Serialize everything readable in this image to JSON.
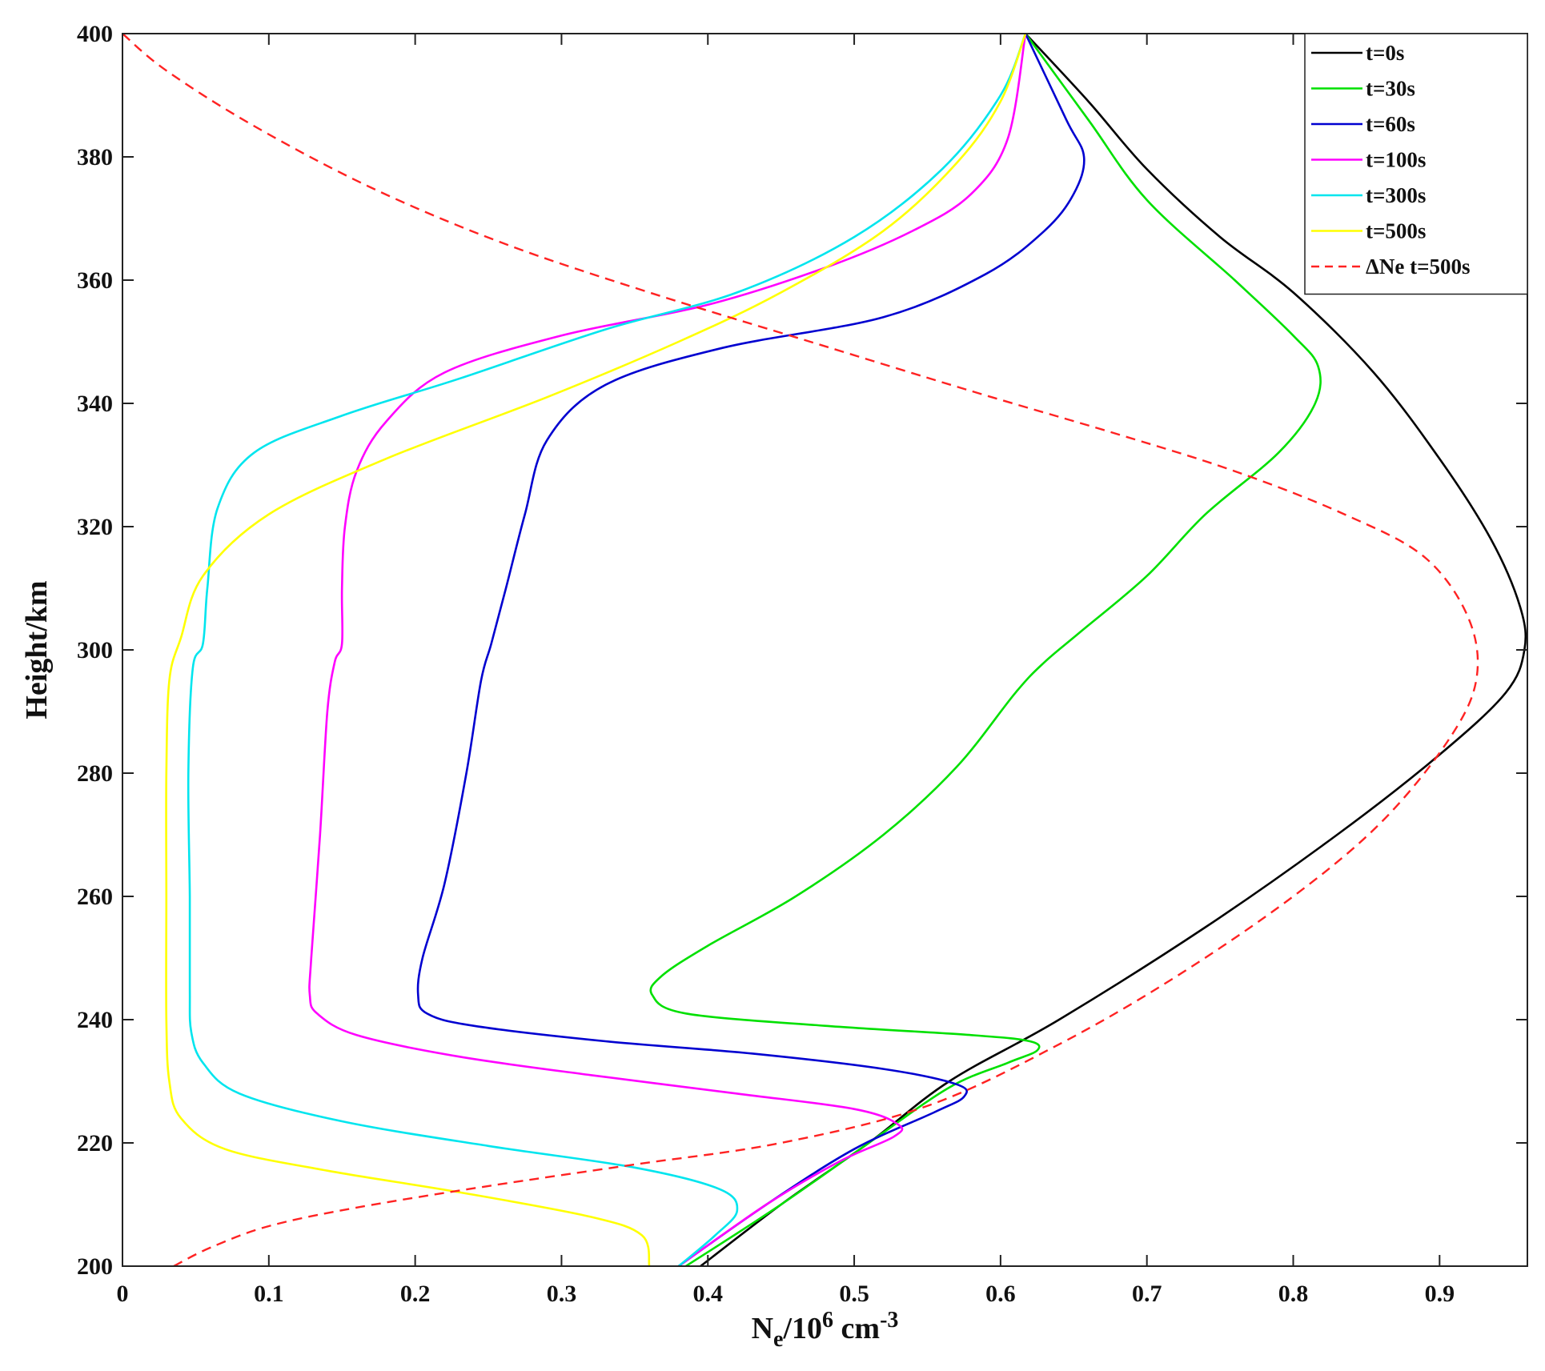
{
  "chart_data": {
    "type": "line",
    "xlabel": {
      "base": "N",
      "sub": "e",
      "mid": "/10",
      "sup1": "6",
      "unit": " cm",
      "sup2": "-3"
    },
    "ylabel": "Height/km",
    "xlim": [
      0,
      0.96
    ],
    "ylim": [
      200,
      400
    ],
    "x_ticks": [
      0,
      0.1,
      0.2,
      0.3,
      0.4,
      0.5,
      0.6,
      0.7,
      0.8,
      0.9
    ],
    "x_tick_labels": [
      "0",
      "0.1",
      "0.2",
      "0.3",
      "0.4",
      "0.5",
      "0.6",
      "0.7",
      "0.8",
      "0.9"
    ],
    "y_ticks": [
      200,
      220,
      240,
      260,
      280,
      300,
      320,
      340,
      360,
      380,
      400
    ],
    "y_tick_labels": [
      "200",
      "220",
      "240",
      "260",
      "280",
      "300",
      "320",
      "340",
      "360",
      "380",
      "400"
    ],
    "grid": false,
    "legend_position": "top-right",
    "series": [
      {
        "name": "t=0s",
        "color": "#000000",
        "dashed": false,
        "points": [
          [
            0.395,
            200
          ],
          [
            0.45,
            210
          ],
          [
            0.51,
            220
          ],
          [
            0.565,
            230
          ],
          [
            0.64,
            240
          ],
          [
            0.74,
            255
          ],
          [
            0.83,
            270
          ],
          [
            0.9,
            283
          ],
          [
            0.945,
            293
          ],
          [
            0.958,
            300
          ],
          [
            0.955,
            307
          ],
          [
            0.935,
            318
          ],
          [
            0.9,
            331
          ],
          [
            0.855,
            345
          ],
          [
            0.8,
            358
          ],
          [
            0.75,
            367
          ],
          [
            0.7,
            378
          ],
          [
            0.66,
            389
          ],
          [
            0.617,
            400
          ]
        ]
      },
      {
        "name": "t=30s",
        "color": "#00e000",
        "dashed": false,
        "points": [
          [
            0.385,
            200
          ],
          [
            0.45,
            210
          ],
          [
            0.51,
            220
          ],
          [
            0.565,
            229
          ],
          [
            0.605,
            233
          ],
          [
            0.625,
            235
          ],
          [
            0.62,
            236.5
          ],
          [
            0.58,
            237.5
          ],
          [
            0.48,
            239
          ],
          [
            0.385,
            241
          ],
          [
            0.362,
            244
          ],
          [
            0.368,
            247
          ],
          [
            0.4,
            252
          ],
          [
            0.46,
            260
          ],
          [
            0.52,
            270
          ],
          [
            0.57,
            281
          ],
          [
            0.61,
            293
          ],
          [
            0.63,
            298
          ],
          [
            0.655,
            303
          ],
          [
            0.7,
            312
          ],
          [
            0.74,
            322
          ],
          [
            0.79,
            332
          ],
          [
            0.815,
            340
          ],
          [
            0.817,
            346
          ],
          [
            0.8,
            351
          ],
          [
            0.76,
            360
          ],
          [
            0.7,
            373
          ],
          [
            0.66,
            386
          ],
          [
            0.617,
            400
          ]
        ]
      },
      {
        "name": "t=60s",
        "color": "#0000d0",
        "dashed": false,
        "points": [
          [
            0.38,
            200
          ],
          [
            0.44,
            210
          ],
          [
            0.5,
            219
          ],
          [
            0.555,
            225
          ],
          [
            0.575,
            227.5
          ],
          [
            0.57,
            229.5
          ],
          [
            0.52,
            232
          ],
          [
            0.43,
            234.5
          ],
          [
            0.33,
            236.5
          ],
          [
            0.24,
            239
          ],
          [
            0.208,
            241
          ],
          [
            0.202,
            244
          ],
          [
            0.205,
            250
          ],
          [
            0.22,
            262
          ],
          [
            0.235,
            280
          ],
          [
            0.245,
            295
          ],
          [
            0.252,
            301
          ],
          [
            0.262,
            310
          ],
          [
            0.275,
            322
          ],
          [
            0.29,
            334
          ],
          [
            0.33,
            343
          ],
          [
            0.41,
            349
          ],
          [
            0.52,
            354
          ],
          [
            0.59,
            361
          ],
          [
            0.63,
            368
          ],
          [
            0.65,
            374
          ],
          [
            0.657,
            380
          ],
          [
            0.645,
            386
          ],
          [
            0.617,
            400
          ]
        ]
      },
      {
        "name": "t=100s",
        "color": "#ff00ff",
        "dashed": false,
        "points": [
          [
            0.38,
            200
          ],
          [
            0.44,
            210
          ],
          [
            0.49,
            217
          ],
          [
            0.527,
            221
          ],
          [
            0.53,
            223
          ],
          [
            0.5,
            225.5
          ],
          [
            0.42,
            228
          ],
          [
            0.32,
            231
          ],
          [
            0.23,
            234
          ],
          [
            0.16,
            237.5
          ],
          [
            0.133,
            241
          ],
          [
            0.128,
            244
          ],
          [
            0.129,
            250
          ],
          [
            0.135,
            270
          ],
          [
            0.14,
            290
          ],
          [
            0.145,
            298
          ],
          [
            0.15,
            301
          ],
          [
            0.15,
            310
          ],
          [
            0.152,
            320
          ],
          [
            0.16,
            329
          ],
          [
            0.18,
            337
          ],
          [
            0.22,
            345
          ],
          [
            0.3,
            351
          ],
          [
            0.4,
            356
          ],
          [
            0.48,
            362
          ],
          [
            0.54,
            368
          ],
          [
            0.58,
            374
          ],
          [
            0.605,
            383
          ],
          [
            0.617,
            400
          ]
        ]
      },
      {
        "name": "t=300s",
        "color": "#00e5ee",
        "dashed": false,
        "points": [
          [
            0.38,
            200
          ],
          [
            0.405,
            205
          ],
          [
            0.42,
            209
          ],
          [
            0.408,
            212.5
          ],
          [
            0.35,
            216
          ],
          [
            0.25,
            219.5
          ],
          [
            0.15,
            223.5
          ],
          [
            0.08,
            228
          ],
          [
            0.055,
            233
          ],
          [
            0.047,
            238
          ],
          [
            0.046,
            245
          ],
          [
            0.046,
            260
          ],
          [
            0.045,
            280
          ],
          [
            0.048,
            297
          ],
          [
            0.055,
            301
          ],
          [
            0.058,
            310
          ],
          [
            0.065,
            323
          ],
          [
            0.09,
            332
          ],
          [
            0.15,
            338
          ],
          [
            0.23,
            344
          ],
          [
            0.33,
            352
          ],
          [
            0.42,
            358
          ],
          [
            0.5,
            367
          ],
          [
            0.56,
            378
          ],
          [
            0.6,
            390
          ],
          [
            0.617,
            400
          ]
        ]
      },
      {
        "name": "t=500s",
        "color": "#ffff00",
        "dashed": false,
        "points": [
          [
            0.36,
            200
          ],
          [
            0.355,
            205
          ],
          [
            0.32,
            208
          ],
          [
            0.23,
            212
          ],
          [
            0.14,
            215.5
          ],
          [
            0.07,
            219
          ],
          [
            0.04,
            224
          ],
          [
            0.032,
            230
          ],
          [
            0.03,
            240
          ],
          [
            0.03,
            260
          ],
          [
            0.03,
            280
          ],
          [
            0.032,
            295
          ],
          [
            0.04,
            302
          ],
          [
            0.055,
            312
          ],
          [
            0.1,
            322
          ],
          [
            0.18,
            331
          ],
          [
            0.29,
            341
          ],
          [
            0.38,
            350
          ],
          [
            0.45,
            358
          ],
          [
            0.52,
            368
          ],
          [
            0.57,
            379
          ],
          [
            0.6,
            389
          ],
          [
            0.617,
            400
          ]
        ]
      },
      {
        "name": "ΔNe t=500s",
        "color": "#ff2222",
        "dashed": true,
        "points": [
          [
            0.035,
            200
          ],
          [
            0.06,
            203
          ],
          [
            0.1,
            206.5
          ],
          [
            0.16,
            209.5
          ],
          [
            0.25,
            213
          ],
          [
            0.35,
            216.5
          ],
          [
            0.45,
            220
          ],
          [
            0.55,
            226
          ],
          [
            0.64,
            236
          ],
          [
            0.72,
            247
          ],
          [
            0.8,
            260
          ],
          [
            0.86,
            272
          ],
          [
            0.905,
            285
          ],
          [
            0.925,
            295
          ],
          [
            0.92,
            305
          ],
          [
            0.89,
            315
          ],
          [
            0.835,
            322
          ],
          [
            0.76,
            329
          ],
          [
            0.68,
            335
          ],
          [
            0.58,
            342
          ],
          [
            0.47,
            350
          ],
          [
            0.36,
            358
          ],
          [
            0.26,
            366
          ],
          [
            0.17,
            375
          ],
          [
            0.09,
            385
          ],
          [
            0.03,
            394
          ],
          [
            0,
            400
          ]
        ]
      }
    ]
  }
}
